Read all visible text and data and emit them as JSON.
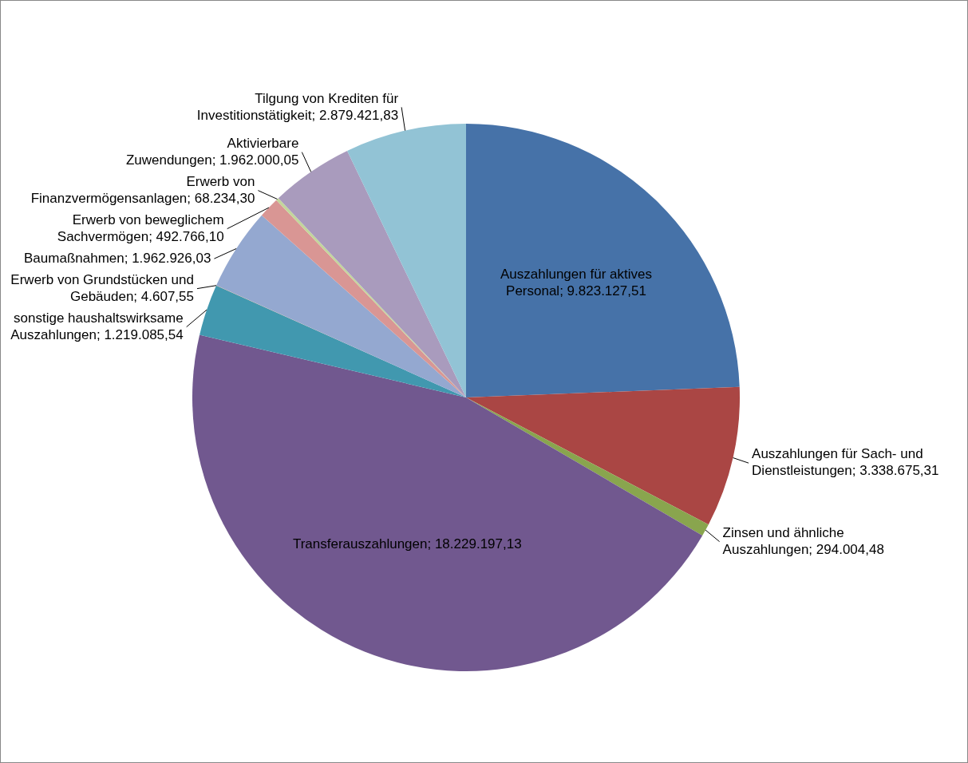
{
  "chart_data": {
    "type": "pie",
    "categories": [
      "Auszahlungen für aktives Personal",
      "Auszahlungen für Sach- und Dienstleistungen",
      "Zinsen und ähnliche Auszahlungen",
      "Transferauszahlungen",
      "sonstige haushaltswirksame Auszahlungen",
      "Erwerb von Grundstücken und Gebäuden",
      "Baumaßnahmen",
      "Erwerb von beweglichem Sachvermögen",
      "Erwerb von Finanzvermögensanlagen",
      "Aktivierbare Zuwendungen",
      "Tilgung von Krediten für Investitionstätigkeit"
    ],
    "values": [
      9823127.51,
      3338675.31,
      294004.48,
      18229197.13,
      1219085.54,
      4607.55,
      1962926.03,
      492766.1,
      68234.3,
      1962000.05,
      2879421.83
    ],
    "value_labels": [
      "9.823.127,51",
      "3.338.675,31",
      "294.004,48",
      "18.229.197,13",
      "1.219.085,54",
      "4.607,55",
      "1.962.926,03",
      "492.766,10",
      "68.234,30",
      "1.962.000,05",
      "2.879.421,83"
    ],
    "colors": [
      "#4672a8",
      "#aa4644",
      "#89a54e",
      "#71588f",
      "#4198af",
      "#f79646",
      "#94a8d0",
      "#d99694",
      "#c3d69b",
      "#a99bbd",
      "#92c3d5"
    ],
    "legend": false
  }
}
